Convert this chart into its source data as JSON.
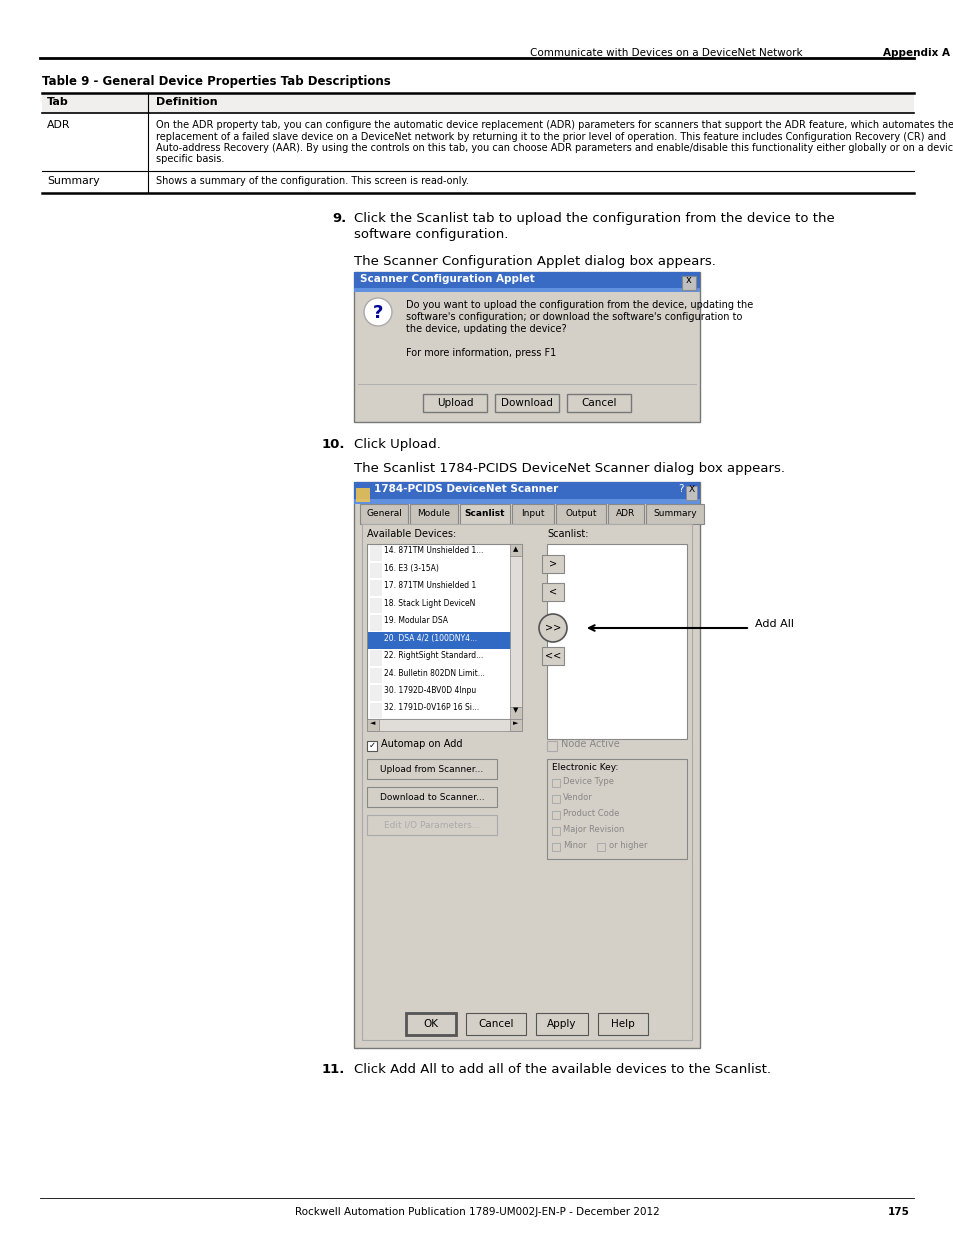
{
  "page_bg": "#ffffff",
  "header_text": "Communicate with Devices on a DeviceNet Network",
  "header_bold": "Appendix A",
  "footer_text": "Rockwell Automation Publication 1789-UM002J-EN-P - December 2012",
  "footer_page": "175",
  "table_title": "Table 9 - General Device Properties Tab Descriptions",
  "table_col1_header": "Tab",
  "table_col2_header": "Definition",
  "table_row1_col1": "ADR",
  "table_row1_col2_lines": [
    "On the ADR property tab, you can configure the automatic device replacement (ADR) parameters for scanners that support the ADR feature, which automates the",
    "replacement of a failed slave device on a DeviceNet network by returning it to the prior level of operation. This feature includes Configuration Recovery (CR) and",
    "Auto-address Recovery (AAR). By using the controls on this tab, you can choose ADR parameters and enable/disable this functionality either globally or on a device-",
    "specific basis."
  ],
  "table_row2_col1": "Summary",
  "table_row2_col2": "Shows a summary of the configuration. This screen is read-only.",
  "step9_num": "9.",
  "step9_line1": "Click the Scanlist tab to upload the configuration from the device to the",
  "step9_line2": "software configuration.",
  "step9_sub": "The Scanner Configuration Applet dialog box appears.",
  "dialog1_title": "Scanner Configuration Applet",
  "dialog1_body_lines": [
    "Do you want to upload the configuration from the device, updating the",
    "software's configuration; or download the software's configuration to",
    "the device, updating the device?",
    "",
    "For more information, press F1"
  ],
  "dialog1_buttons": [
    "Upload",
    "Download",
    "Cancel"
  ],
  "step10_num": "10.",
  "step10_text": "Click Upload.",
  "step10_sub": "The Scanlist 1784-PCIDS DeviceNet Scanner dialog box appears.",
  "dialog2_title": "1784-PCIDS DeviceNet Scanner",
  "dialog2_tabs": [
    "General",
    "Module",
    "Scanlist",
    "Input",
    "Output",
    "ADR",
    "Summary"
  ],
  "dialog2_active_tab": "Scanlist",
  "available_label": "Available Devices:",
  "scanlist_label": "Scanlist:",
  "available_devices": [
    "14. 871TM Unshielded 1...",
    "16. E3 (3-15A)",
    "17. 871TM Unshielded 1",
    "18. Stack Light DeviceN",
    "19. Modular DSA",
    "20. DSA 4/2 (100DNY4...",
    "22. RightSight Standard...",
    "24. Bulletin 802DN Limit...",
    "30. 1792D-4BV0D 4Inpu",
    "32. 1791D-0V16P 16 Si..."
  ],
  "highlighted_device_idx": 5,
  "nav_buttons": [
    ">",
    "<",
    ">>",
    "<<"
  ],
  "add_all_label": "Add All",
  "automap_label": "Automap on Add",
  "node_active_label": "Node Active",
  "ek_label": "Electronic Key:",
  "ek_items": [
    "Device Type",
    "Vendor",
    "Product Code",
    "Major Revision",
    "Minor    or higher"
  ],
  "action_buttons": [
    "Upload from Scanner...",
    "Download to Scanner...",
    "Edit I/O Parameters..."
  ],
  "bottom_buttons": [
    "OK",
    "Cancel",
    "Apply",
    "Help"
  ],
  "step11_num": "11.",
  "step11_text": "Click Add All to add all of the available devices to the Scanlist.",
  "title_bar_color": "#3a6bc4",
  "dialog_bg": "#d4d0c8",
  "list_bg": "#ffffff",
  "highlight_color": "#316ac5"
}
